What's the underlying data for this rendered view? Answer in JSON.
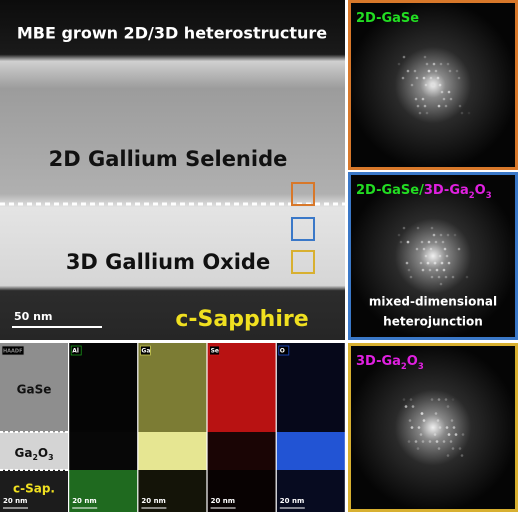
{
  "main_image": {
    "title": "MBE grown 2D/3D heterostructure",
    "layer_top": "2D Gallium Selenide",
    "layer_middle": "3D Gallium Oxide",
    "substrate": "c-Sapphire",
    "scale_bar": "50 nm"
  },
  "fft_panels": [
    {
      "border": "#d8782a",
      "label_parts": [
        {
          "text": "2D-GaSe",
          "color": "#22dd22"
        }
      ]
    },
    {
      "border": "#3a78c8",
      "label_parts": [
        {
          "text": "2D-GaSe/",
          "color": "#22dd22"
        },
        {
          "text": "3D-Ga",
          "color": "#e020e0"
        },
        {
          "text": "2",
          "color": "#e020e0",
          "sub": true
        },
        {
          "text": "O",
          "color": "#e020e0"
        },
        {
          "text": "3",
          "color": "#e020e0",
          "sub": true
        }
      ],
      "caption": [
        "mixed-dimensional",
        "heterojunction"
      ]
    },
    {
      "border": "#d8b030",
      "label_parts": [
        {
          "text": "3D-Ga",
          "color": "#e020e0"
        },
        {
          "text": "2",
          "color": "#e020e0",
          "sub": true
        },
        {
          "text": "O",
          "color": "#e020e0"
        },
        {
          "text": "3",
          "color": "#e020e0",
          "sub": true
        }
      ]
    }
  ],
  "eds_maps": [
    {
      "label": "HAADF",
      "label_color": "#888888",
      "scale_bar": "20 nm",
      "layers": [
        "#8e8e8e",
        "#d4d4d4",
        "#1c1c1c"
      ]
    },
    {
      "label": "Al",
      "label_color": "#1a9a1a",
      "scale_bar": "20 nm",
      "layers": [
        "#050505",
        "#070707",
        "#1f6a1f"
      ]
    },
    {
      "label": "Ga",
      "label_color": "#c8c850",
      "scale_bar": "20 nm",
      "layers": [
        "#7c7c34",
        "#e6e692",
        "#141408"
      ]
    },
    {
      "label": "Se",
      "label_color": "#d01818",
      "scale_bar": "20 nm",
      "layers": [
        "#b81212",
        "#1a0505",
        "#080202"
      ]
    },
    {
      "label": "O",
      "label_color": "#2050d0",
      "scale_bar": "20 nm",
      "layers": [
        "#06081a",
        "#2254d4",
        "#070b20"
      ]
    }
  ],
  "eds_layers": {
    "top": "GaSe",
    "middle_parts": [
      {
        "text": "Ga"
      },
      {
        "text": "2",
        "sub": true
      },
      {
        "text": "O"
      },
      {
        "text": "3",
        "sub": true
      }
    ],
    "bottom": "c-Sap."
  }
}
